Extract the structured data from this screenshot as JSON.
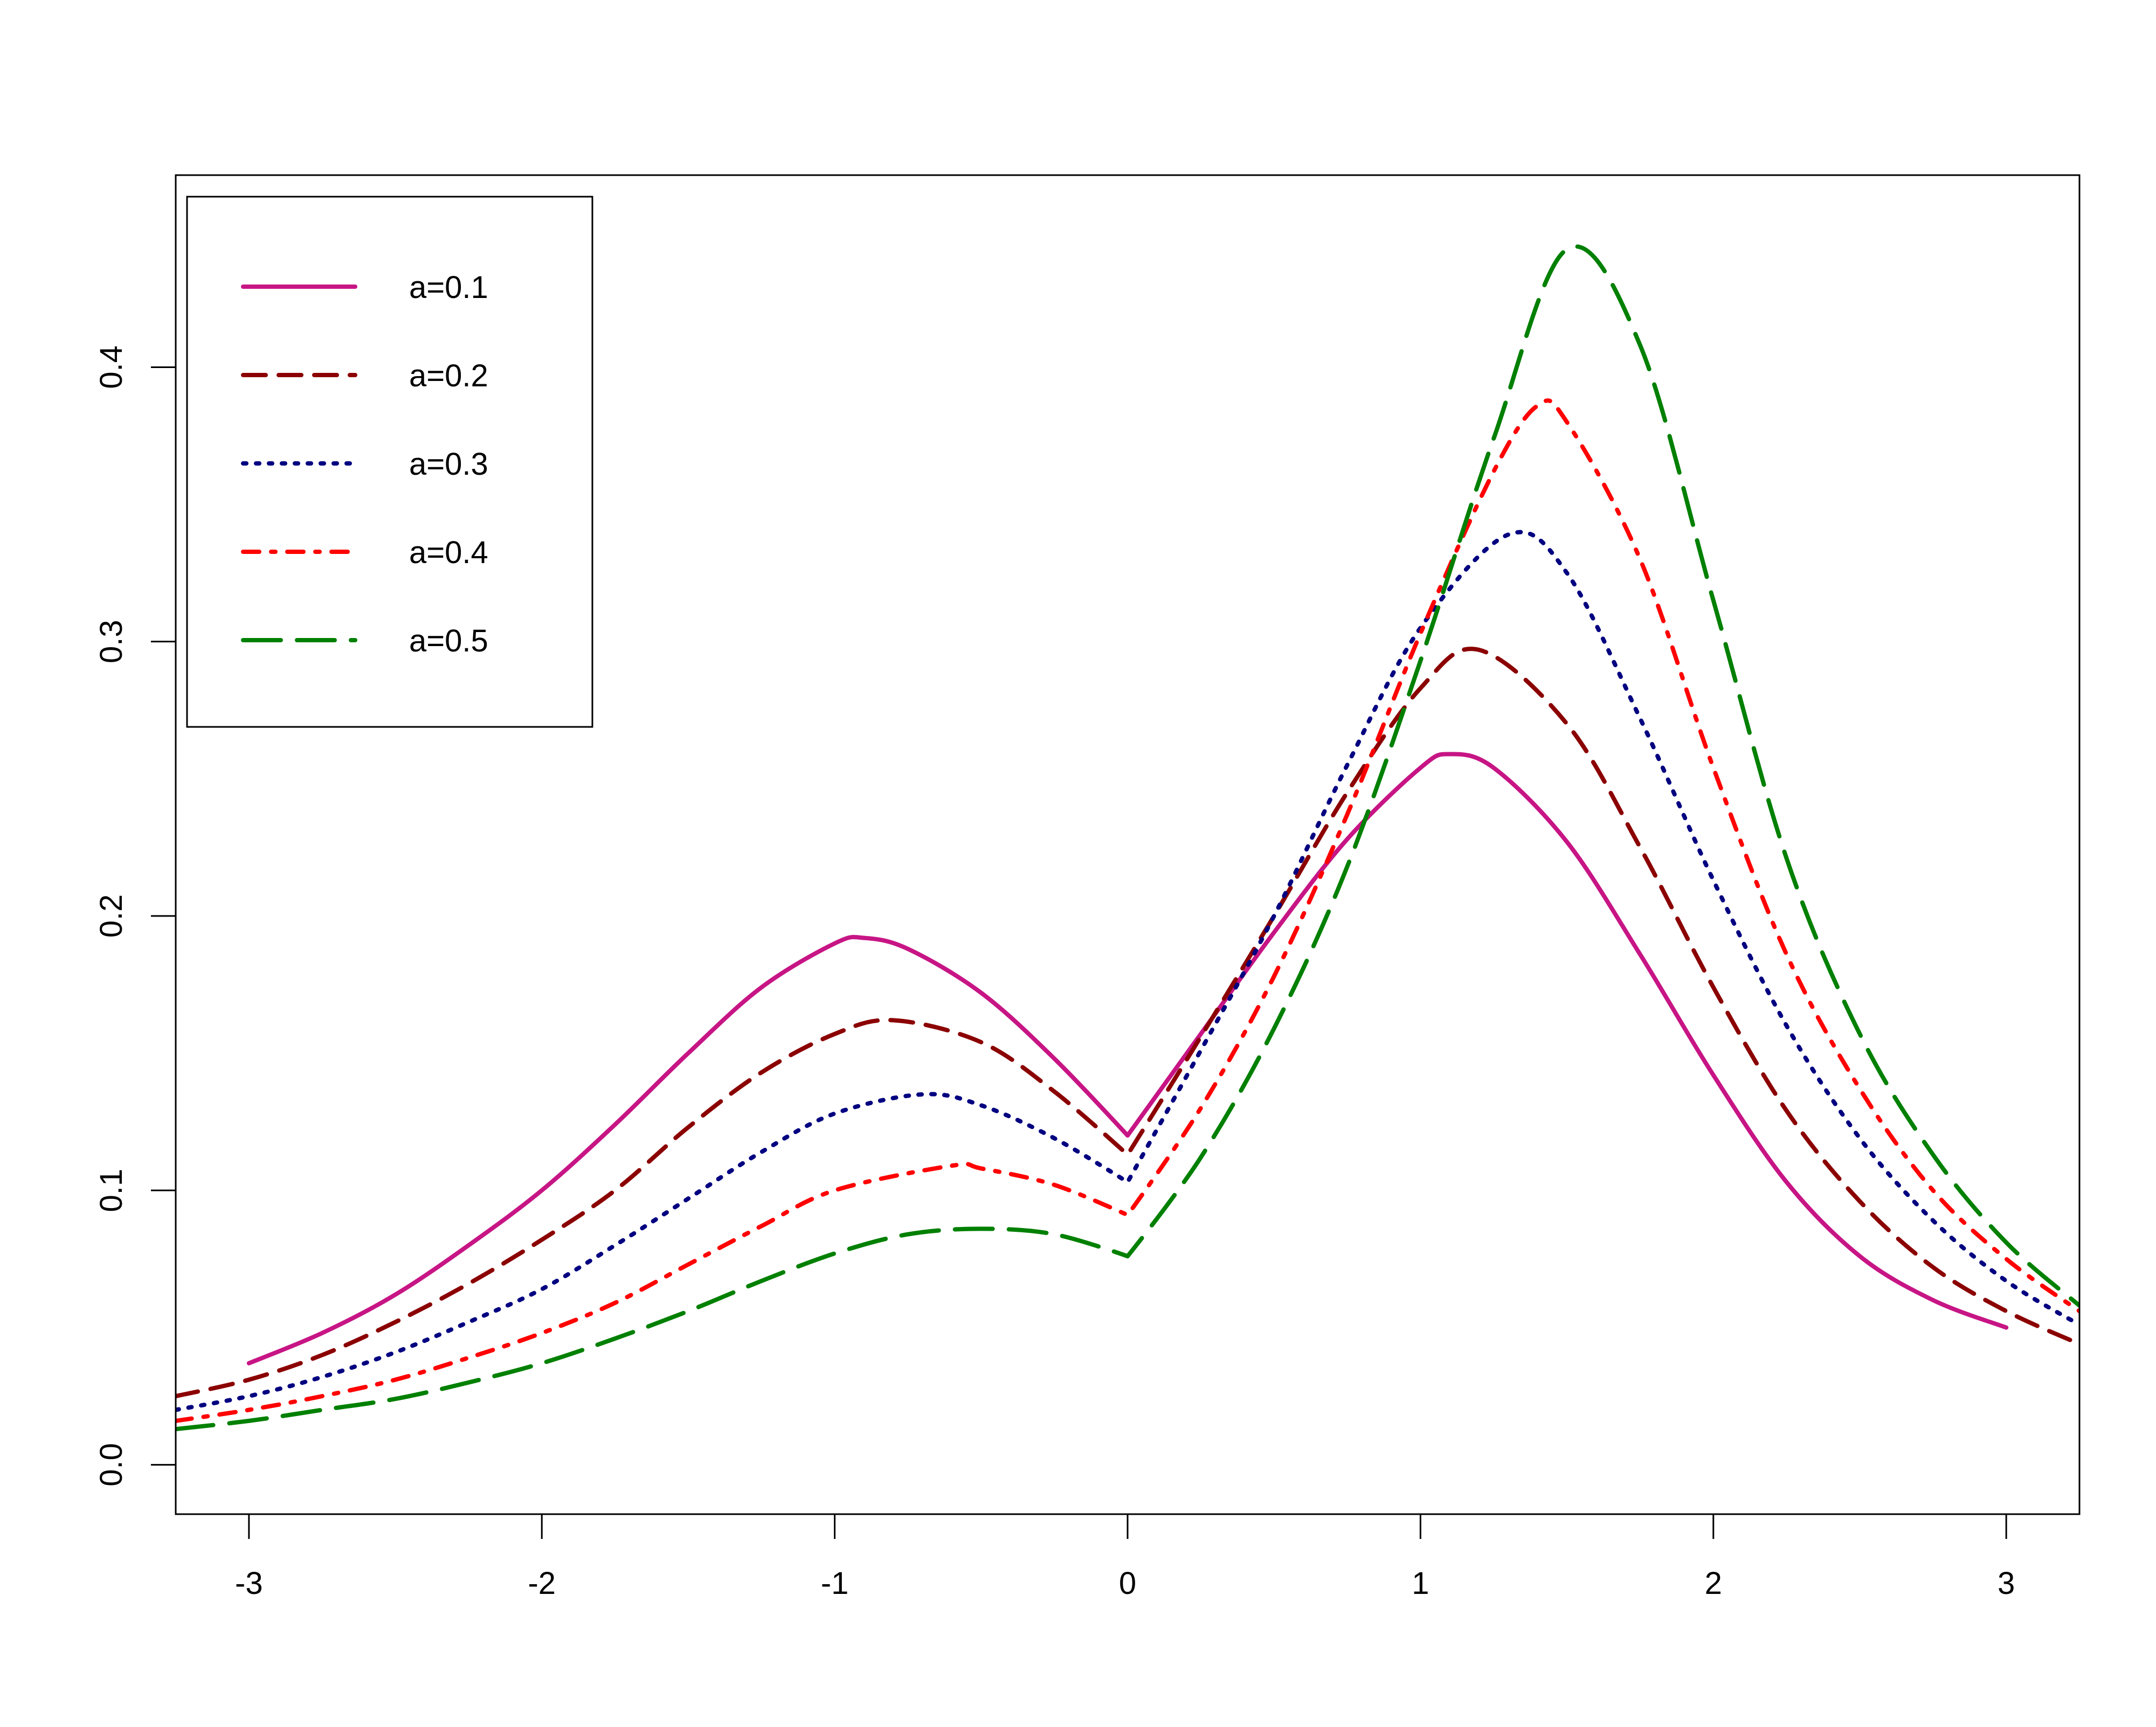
{
  "chart_data": {
    "type": "line",
    "title": "",
    "xlabel": "",
    "ylabel": "",
    "xlim": [
      -3.25,
      3.25
    ],
    "ylim": [
      -0.018,
      0.47
    ],
    "xticks": [
      "-3",
      "-2",
      "-1",
      "0",
      "1",
      "2",
      "3"
    ],
    "xtick_values": [
      -3,
      -2,
      -1,
      0,
      1,
      2,
      3
    ],
    "yticks": [
      "0.0",
      "0.1",
      "0.2",
      "0.3",
      "0.4"
    ],
    "ytick_values": [
      0.0,
      0.1,
      0.2,
      0.3,
      0.4
    ],
    "grid": false,
    "legend_position": "top-left",
    "series": [
      {
        "name": "a=0.1",
        "color": "#c71585",
        "dash": "solid",
        "x": [
          -3.0,
          -2.75,
          -2.5,
          -2.25,
          -2.0,
          -1.75,
          -1.5,
          -1.25,
          -1.0,
          -0.9,
          -0.75,
          -0.5,
          -0.25,
          0.0,
          0.25,
          0.5,
          0.75,
          1.0,
          1.1,
          1.25,
          1.5,
          1.75,
          2.0,
          2.25,
          2.5,
          2.75,
          3.0
        ],
        "y": [
          0.037,
          0.048,
          0.062,
          0.08,
          0.1,
          0.124,
          0.15,
          0.174,
          0.19,
          0.192,
          0.188,
          0.172,
          0.148,
          0.12,
          0.157,
          0.194,
          0.228,
          0.254,
          0.259,
          0.254,
          0.227,
          0.186,
          0.142,
          0.103,
          0.076,
          0.06,
          0.05
        ]
      },
      {
        "name": "a=0.2",
        "color": "#8b0000",
        "dash": "dashed",
        "x": [
          -3.25,
          -3.0,
          -2.75,
          -2.5,
          -2.25,
          -2.0,
          -1.75,
          -1.5,
          -1.25,
          -1.0,
          -0.8,
          -0.5,
          -0.25,
          0.0,
          0.25,
          0.5,
          0.75,
          1.0,
          1.2,
          1.5,
          1.75,
          2.0,
          2.25,
          2.5,
          2.75,
          3.0,
          3.25
        ],
        "y": [
          0.025,
          0.031,
          0.04,
          0.052,
          0.066,
          0.082,
          0.1,
          0.123,
          0.143,
          0.157,
          0.162,
          0.154,
          0.136,
          0.113,
          0.156,
          0.2,
          0.245,
          0.283,
          0.297,
          0.27,
          0.225,
          0.174,
          0.129,
          0.096,
          0.072,
          0.056,
          0.044
        ]
      },
      {
        "name": "a=0.3",
        "color": "#000080",
        "dash": "dotted",
        "x": [
          -3.25,
          -3.0,
          -2.75,
          -2.5,
          -2.25,
          -2.0,
          -1.75,
          -1.5,
          -1.25,
          -1.0,
          -0.7,
          -0.5,
          -0.25,
          0.0,
          0.25,
          0.5,
          0.75,
          1.0,
          1.3,
          1.5,
          1.75,
          2.0,
          2.25,
          2.5,
          2.75,
          3.0,
          3.25
        ],
        "y": [
          0.02,
          0.025,
          0.032,
          0.041,
          0.052,
          0.064,
          0.08,
          0.097,
          0.114,
          0.128,
          0.135,
          0.131,
          0.119,
          0.103,
          0.151,
          0.2,
          0.255,
          0.305,
          0.339,
          0.325,
          0.272,
          0.213,
          0.16,
          0.119,
          0.089,
          0.067,
          0.051
        ]
      },
      {
        "name": "a=0.4",
        "color": "#ff0000",
        "dash": "dashdot",
        "x": [
          -3.25,
          -3.0,
          -2.75,
          -2.5,
          -2.25,
          -2.0,
          -1.75,
          -1.5,
          -1.25,
          -1.0,
          -0.6,
          -0.5,
          -0.25,
          0.0,
          0.25,
          0.5,
          0.75,
          1.0,
          1.25,
          1.4,
          1.5,
          1.75,
          2.0,
          2.25,
          2.5,
          2.75,
          3.0,
          3.25
        ],
        "y": [
          0.016,
          0.02,
          0.025,
          0.031,
          0.039,
          0.048,
          0.059,
          0.073,
          0.087,
          0.1,
          0.109,
          0.108,
          0.102,
          0.091,
          0.13,
          0.178,
          0.237,
          0.303,
          0.362,
          0.386,
          0.38,
          0.33,
          0.254,
          0.186,
          0.137,
          0.1,
          0.075,
          0.056
        ]
      },
      {
        "name": "a=0.5",
        "color": "#008000",
        "dash": "longdash",
        "x": [
          -3.25,
          -3.0,
          -2.75,
          -2.5,
          -2.25,
          -2.0,
          -1.75,
          -1.5,
          -1.25,
          -1.0,
          -0.75,
          -0.5,
          -0.25,
          0.0,
          0.25,
          0.5,
          0.75,
          1.0,
          1.25,
          1.5,
          1.75,
          2.0,
          2.25,
          2.5,
          2.75,
          3.0,
          3.25
        ],
        "y": [
          0.013,
          0.016,
          0.02,
          0.024,
          0.03,
          0.037,
          0.046,
          0.056,
          0.067,
          0.077,
          0.084,
          0.086,
          0.084,
          0.076,
          0.112,
          0.159,
          0.218,
          0.293,
          0.374,
          0.443,
          0.408,
          0.315,
          0.221,
          0.157,
          0.113,
          0.081,
          0.058
        ]
      }
    ]
  }
}
